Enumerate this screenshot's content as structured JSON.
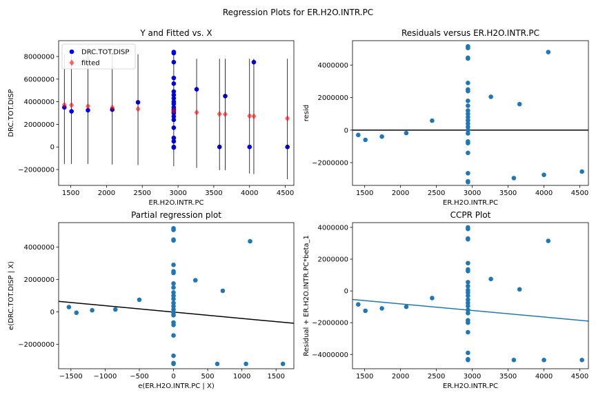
{
  "suptitle": "Regression Plots for ER.H2O.INTR.PC",
  "chart_data": [
    {
      "type": "scatter",
      "title": "Y and Fitted vs. X",
      "xlabel": "ER.H2O.INTR.PC",
      "ylabel": "DRC.TOT.DISP",
      "xlim": [
        1330,
        4620
      ],
      "ylim": [
        -3400000,
        9400000
      ],
      "xticks": [
        1500,
        2000,
        2500,
        3000,
        3500,
        4000,
        4500
      ],
      "yticks": [
        -2000000,
        0,
        2000000,
        4000000,
        6000000,
        8000000
      ],
      "legend": [
        "DRC.TOT.DISP",
        "fitted"
      ],
      "legend_position": "upper left",
      "series": [
        {
          "name": "DRC.TOT.DISP",
          "color": "#0000ff",
          "marker": "circle",
          "points": [
            [
              1410,
              3500000
            ],
            [
              1510,
              3150000
            ],
            [
              1740,
              3250000
            ],
            [
              2080,
              3300000
            ],
            [
              2440,
              3950000
            ],
            [
              2940,
              8400000
            ],
            [
              2940,
              8300000
            ],
            [
              2940,
              7500000
            ],
            [
              2940,
              6100000
            ],
            [
              2940,
              5600000
            ],
            [
              2940,
              4900000
            ],
            [
              2940,
              4600000
            ],
            [
              2940,
              4300000
            ],
            [
              2940,
              4000000
            ],
            [
              2940,
              3800000
            ],
            [
              2940,
              3500000
            ],
            [
              2940,
              3300000
            ],
            [
              2940,
              3100000
            ],
            [
              2940,
              3000000
            ],
            [
              2940,
              2700000
            ],
            [
              2940,
              2400000
            ],
            [
              2940,
              1700000
            ],
            [
              2940,
              800000
            ],
            [
              2940,
              500000
            ],
            [
              2940,
              0
            ],
            [
              2940,
              -50000
            ],
            [
              3260,
              5100000
            ],
            [
              3580,
              0
            ],
            [
              3660,
              4500000
            ],
            [
              4000,
              0
            ],
            [
              4060,
              7500000
            ],
            [
              4530,
              0
            ]
          ]
        },
        {
          "name": "fitted",
          "color": "#ff0000",
          "marker": "diamond",
          "points": [
            [
              1410,
              3720000
            ],
            [
              1510,
              3700000
            ],
            [
              1740,
              3600000
            ],
            [
              2080,
              3480000
            ],
            [
              2440,
              3360000
            ],
            [
              2940,
              3180000
            ],
            [
              3260,
              3050000
            ],
            [
              3580,
              2920000
            ],
            [
              3660,
              2890000
            ],
            [
              4000,
              2740000
            ],
            [
              4060,
              2710000
            ],
            [
              4530,
              2520000
            ]
          ],
          "ci_lines": [
            [
              1410,
              -1500000,
              8200000
            ],
            [
              1510,
              -1500000,
              8200000
            ],
            [
              1740,
              -1500000,
              8200000
            ],
            [
              2080,
              -1550000,
              8200000
            ],
            [
              2440,
              -1600000,
              8200000
            ],
            [
              2940,
              -1700000,
              8200000
            ],
            [
              3260,
              -1850000,
              7800000
            ],
            [
              3580,
              -2050000,
              7800000
            ],
            [
              3660,
              -2050000,
              7800000
            ],
            [
              4000,
              -2350000,
              7800000
            ],
            [
              4060,
              -2400000,
              7800000
            ],
            [
              4530,
              -2850000,
              7800000
            ]
          ]
        }
      ]
    },
    {
      "type": "scatter",
      "title": "Residuals versus ER.H2O.INTR.PC",
      "xlabel": "ER.H2O.INTR.PC",
      "ylabel": "resid",
      "xlim": [
        1330,
        4620
      ],
      "ylim": [
        -3400000,
        5500000
      ],
      "xticks": [
        1500,
        2000,
        2500,
        3000,
        3500,
        4000,
        4500
      ],
      "yticks": [
        -2000000,
        0,
        2000000,
        4000000
      ],
      "hline": 0,
      "series": [
        {
          "color": "#1f77b4",
          "points": [
            [
              1410,
              -300000
            ],
            [
              1510,
              -600000
            ],
            [
              1740,
              -400000
            ],
            [
              2080,
              -180000
            ],
            [
              2440,
              580000
            ],
            [
              2940,
              5150000
            ],
            [
              2940,
              5050000
            ],
            [
              2940,
              4450000
            ],
            [
              2940,
              4400000
            ],
            [
              2940,
              2900000
            ],
            [
              2940,
              2500000
            ],
            [
              2940,
              2400000
            ],
            [
              2940,
              1800000
            ],
            [
              2940,
              1500000
            ],
            [
              2940,
              1200000
            ],
            [
              2940,
              1000000
            ],
            [
              2940,
              800000
            ],
            [
              2940,
              600000
            ],
            [
              2940,
              400000
            ],
            [
              2940,
              200000
            ],
            [
              2940,
              0
            ],
            [
              2940,
              -200000
            ],
            [
              2940,
              -700000
            ],
            [
              2940,
              -800000
            ],
            [
              2940,
              -1400000
            ],
            [
              2940,
              -2650000
            ],
            [
              2940,
              -3150000
            ],
            [
              2940,
              -3200000
            ],
            [
              3260,
              2050000
            ],
            [
              3580,
              -2950000
            ],
            [
              3660,
              1600000
            ],
            [
              4000,
              -2750000
            ],
            [
              4060,
              4800000
            ],
            [
              4530,
              -2550000
            ]
          ]
        }
      ]
    },
    {
      "type": "scatter",
      "title": "Partial regression plot",
      "xlabel": "e(ER.H2O.INTR.PC | X)",
      "ylabel": "e(DRC.TOT.DISP | X)",
      "xlim": [
        -1680,
        1760
      ],
      "ylim": [
        -3500000,
        5500000
      ],
      "xticks": [
        -1500,
        -1000,
        -500,
        0,
        500,
        1000,
        1500
      ],
      "yticks": [
        -2000000,
        0,
        2000000,
        4000000
      ],
      "fit_line": [
        [
          -1680,
          650000
        ],
        [
          1760,
          -700000
        ]
      ],
      "series": [
        {
          "color": "#1f77b4",
          "points": [
            [
              -1530,
              300000
            ],
            [
              -1420,
              -50000
            ],
            [
              -1190,
              100000
            ],
            [
              -850,
              150000
            ],
            [
              -500,
              750000
            ],
            [
              0,
              5150000
            ],
            [
              0,
              5050000
            ],
            [
              0,
              4450000
            ],
            [
              0,
              4400000
            ],
            [
              0,
              2900000
            ],
            [
              0,
              2500000
            ],
            [
              0,
              2400000
            ],
            [
              0,
              1750000
            ],
            [
              0,
              1500000
            ],
            [
              0,
              1200000
            ],
            [
              0,
              1000000
            ],
            [
              0,
              800000
            ],
            [
              0,
              550000
            ],
            [
              0,
              350000
            ],
            [
              0,
              150000
            ],
            [
              0,
              -50000
            ],
            [
              0,
              -200000
            ],
            [
              0,
              -650000
            ],
            [
              0,
              -800000
            ],
            [
              0,
              -1450000
            ],
            [
              0,
              -2700000
            ],
            [
              0,
              -3150000
            ],
            [
              0,
              -3200000
            ],
            [
              320,
              1950000
            ],
            [
              640,
              -3200000
            ],
            [
              720,
              1300000
            ],
            [
              1060,
              -3200000
            ],
            [
              1120,
              4350000
            ],
            [
              1600,
              -3200000
            ]
          ]
        }
      ]
    },
    {
      "type": "scatter",
      "title": "CCPR Plot",
      "xlabel": "ER.H2O.INTR.PC",
      "ylabel": "Residual + ER.H2O.INTR.PC*beta_1",
      "xlim": [
        1330,
        4620
      ],
      "ylim": [
        -4900000,
        4300000
      ],
      "xticks": [
        1500,
        2000,
        2500,
        3000,
        3500,
        4000,
        4500
      ],
      "yticks": [
        -4000000,
        -2000000,
        0,
        2000000,
        4000000
      ],
      "fit_line": [
        [
          1330,
          -540000
        ],
        [
          4620,
          -1900000
        ]
      ],
      "fit_color": "#1f77b4",
      "series": [
        {
          "color": "#1f77b4",
          "points": [
            [
              1410,
              -850000
            ],
            [
              1510,
              -1250000
            ],
            [
              1740,
              -1100000
            ],
            [
              2080,
              -1000000
            ],
            [
              2440,
              -450000
            ],
            [
              2940,
              4000000
            ],
            [
              2940,
              3900000
            ],
            [
              2940,
              3300000
            ],
            [
              2940,
              3250000
            ],
            [
              2940,
              1750000
            ],
            [
              2940,
              1350000
            ],
            [
              2940,
              1250000
            ],
            [
              2940,
              550000
            ],
            [
              2940,
              300000
            ],
            [
              2940,
              50000
            ],
            [
              2940,
              -100000
            ],
            [
              2940,
              -300000
            ],
            [
              2940,
              -550000
            ],
            [
              2940,
              -750000
            ],
            [
              2940,
              -950000
            ],
            [
              2940,
              -1200000
            ],
            [
              2940,
              -1400000
            ],
            [
              2940,
              -1850000
            ],
            [
              2940,
              -2000000
            ],
            [
              2940,
              -2600000
            ],
            [
              2940,
              -3900000
            ],
            [
              2940,
              -4300000
            ],
            [
              2940,
              -4350000
            ],
            [
              3260,
              750000
            ],
            [
              3580,
              -4350000
            ],
            [
              3660,
              100000
            ],
            [
              4000,
              -4350000
            ],
            [
              4060,
              3150000
            ],
            [
              4530,
              -4350000
            ]
          ]
        }
      ]
    }
  ]
}
